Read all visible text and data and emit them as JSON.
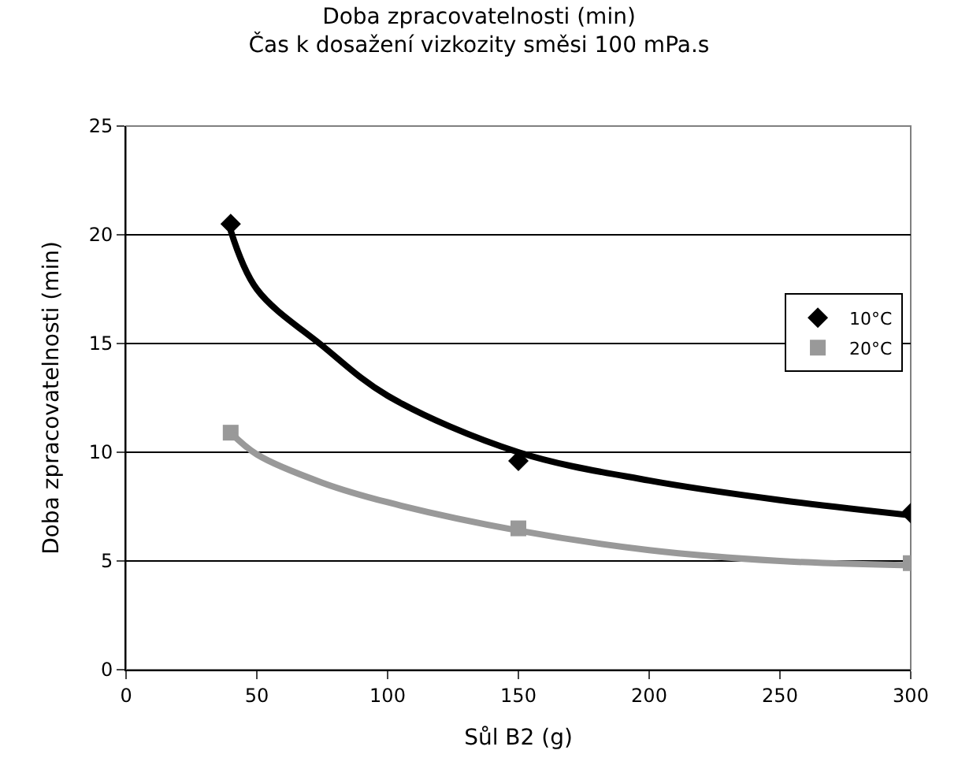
{
  "chart_data": {
    "type": "scatter",
    "title": "Doba zpracovatelnosti (min)\nČas k dosažení vizkozity směsi 100 mPa.s",
    "xlabel": "Sůl B2 (g)",
    "ylabel": "Doba zpracovatelnosti (min)",
    "series": [
      {
        "name": "10°C",
        "color": "#000000",
        "marker": "diamond",
        "x": [
          40,
          150,
          300
        ],
        "values": [
          20.5,
          9.6,
          7.2
        ]
      },
      {
        "name": "20°C",
        "color": "#999999",
        "marker": "square",
        "x": [
          40,
          150,
          300
        ],
        "values": [
          10.9,
          6.5,
          4.9
        ]
      },
      {
        "type": "line",
        "color": "#000000",
        "x": [
          40,
          50,
          75,
          100,
          150,
          200,
          250,
          300
        ],
        "values": [
          20.2,
          17.5,
          14.9,
          12.6,
          10.0,
          8.7,
          7.8,
          7.1
        ]
      },
      {
        "type": "line",
        "color": "#999999",
        "x": [
          40,
          50,
          75,
          100,
          150,
          200,
          250,
          300
        ],
        "values": [
          10.9,
          9.9,
          8.6,
          7.7,
          6.4,
          5.5,
          5.0,
          4.8
        ]
      }
    ],
    "xlim": [
      0,
      300
    ],
    "xticks": [
      0,
      50,
      100,
      150,
      200,
      250,
      300
    ],
    "ylim": [
      0,
      25
    ],
    "yticks": [
      0,
      5,
      10,
      15,
      20,
      25
    ],
    "grid": "y",
    "legend": "right"
  }
}
